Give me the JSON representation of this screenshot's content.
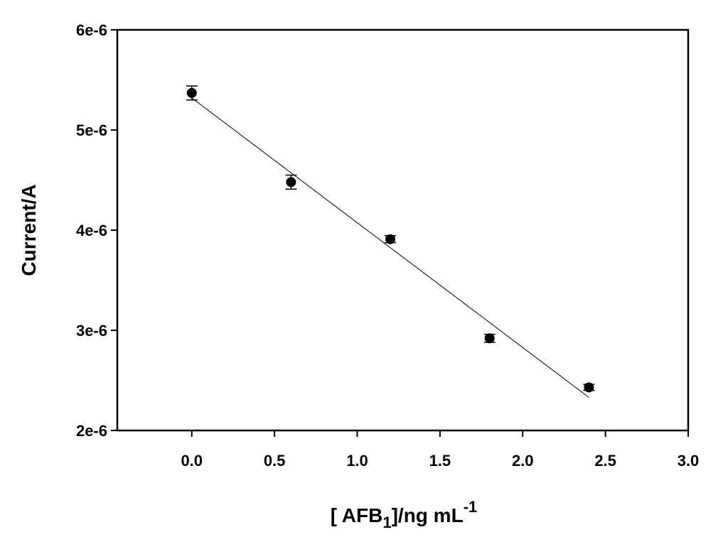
{
  "chart_data": {
    "type": "scatter",
    "title": "",
    "xlabel": {
      "prefix": "[ AFB",
      "subscript": "1",
      "middle": "]/ng mL",
      "superscript": "-1"
    },
    "ylabel": "Current/A",
    "xlim": [
      -0.45,
      3.0
    ],
    "ylim": [
      2e-06,
      6e-06
    ],
    "x_ticks": [
      0.0,
      0.5,
      1.0,
      1.5,
      2.0,
      2.5,
      3.0
    ],
    "x_tick_labels": [
      "0.0",
      "0.5",
      "1.0",
      "1.5",
      "2.0",
      "2.5",
      "3.0"
    ],
    "y_ticks": [
      2e-06,
      3e-06,
      4e-06,
      5e-06,
      6e-06
    ],
    "y_tick_labels": [
      "2e-6",
      "3e-6",
      "4e-6",
      "5e-6",
      "6e-6"
    ],
    "grid": false,
    "series": [
      {
        "x": [
          0.0,
          0.6,
          1.2,
          1.8,
          2.4
        ],
        "y": [
          5.37e-06,
          4.48e-06,
          3.91e-06,
          2.92e-06,
          2.43e-06
        ],
        "error": [
          7e-08,
          7e-08,
          3.5e-08,
          4e-08,
          3e-08
        ],
        "marker": "circle",
        "color": "#000000"
      }
    ],
    "fit_line": {
      "x": [
        0.0,
        2.4
      ],
      "y": [
        5.32e-06,
        2.33e-06
      ],
      "color": "#000000"
    }
  }
}
